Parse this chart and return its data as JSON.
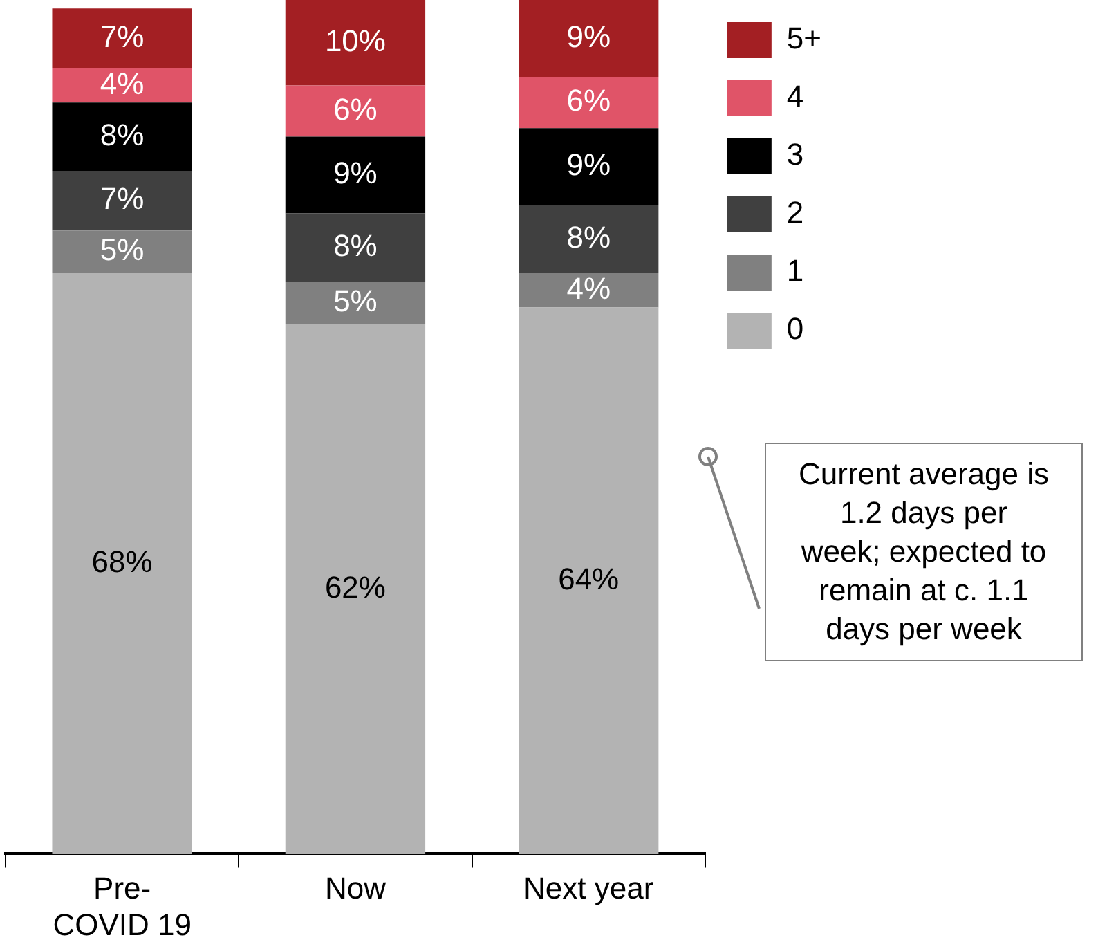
{
  "chart_data": {
    "type": "bar",
    "stacked": true,
    "categories": [
      "Pre-COVID 19",
      "Now",
      "Next year"
    ],
    "series": [
      {
        "name": "0",
        "color": "#b3b3b3",
        "values": [
          68,
          62,
          64
        ],
        "value_labels": [
          "68%",
          "62%",
          "64%"
        ]
      },
      {
        "name": "1",
        "color": "#808080",
        "values": [
          5,
          5,
          4
        ],
        "value_labels": [
          "5%",
          "5%",
          "4%"
        ]
      },
      {
        "name": "2",
        "color": "#404040",
        "values": [
          7,
          8,
          8
        ],
        "value_labels": [
          "7%",
          "8%",
          "8%"
        ]
      },
      {
        "name": "3",
        "color": "#000000",
        "values": [
          8,
          9,
          9
        ],
        "value_labels": [
          "8%",
          "9%",
          "9%"
        ]
      },
      {
        "name": "4",
        "color": "#e05468",
        "values": [
          4,
          6,
          6
        ],
        "value_labels": [
          "4%",
          "6%",
          "6%"
        ]
      },
      {
        "name": "5+",
        "color": "#a31f23",
        "values": [
          7,
          10,
          9
        ],
        "value_labels": [
          "7%",
          "10%",
          "9%"
        ]
      }
    ],
    "legend": "right",
    "grid": false,
    "annotations": [
      "Current average is 1.2 days per week; expected to remain at c. 1.1 days per week"
    ]
  }
}
